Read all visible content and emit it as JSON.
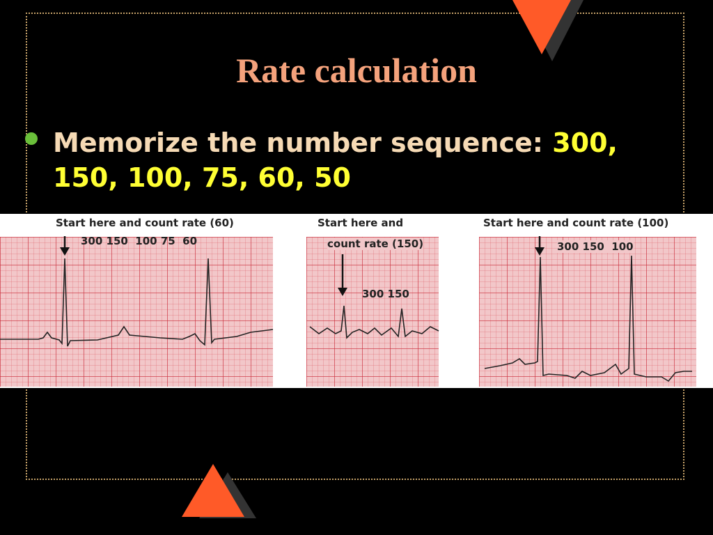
{
  "slide": {
    "title": "Rate calculation",
    "bullet": {
      "text": "Memorize the number sequence: ",
      "highlight": "300, 150, 100, 75, 60, 50"
    }
  },
  "ecg_strips": [
    {
      "label": "Start here and count rate (60)",
      "sequence": "300 150  100 75  60"
    },
    {
      "label_line1": "Start here and",
      "label_line2": "count rate (150)",
      "sequence": "300 150"
    },
    {
      "label": "Start here and count rate (100)",
      "sequence": "300 150  100"
    }
  ],
  "colors": {
    "background": "#000000",
    "title": "#f4a27c",
    "text": "#f6dab5",
    "highlight": "#ffff33",
    "bullet": "#6abf3a",
    "triangle": "#ff5a28",
    "grid": "#f2c7c9"
  }
}
